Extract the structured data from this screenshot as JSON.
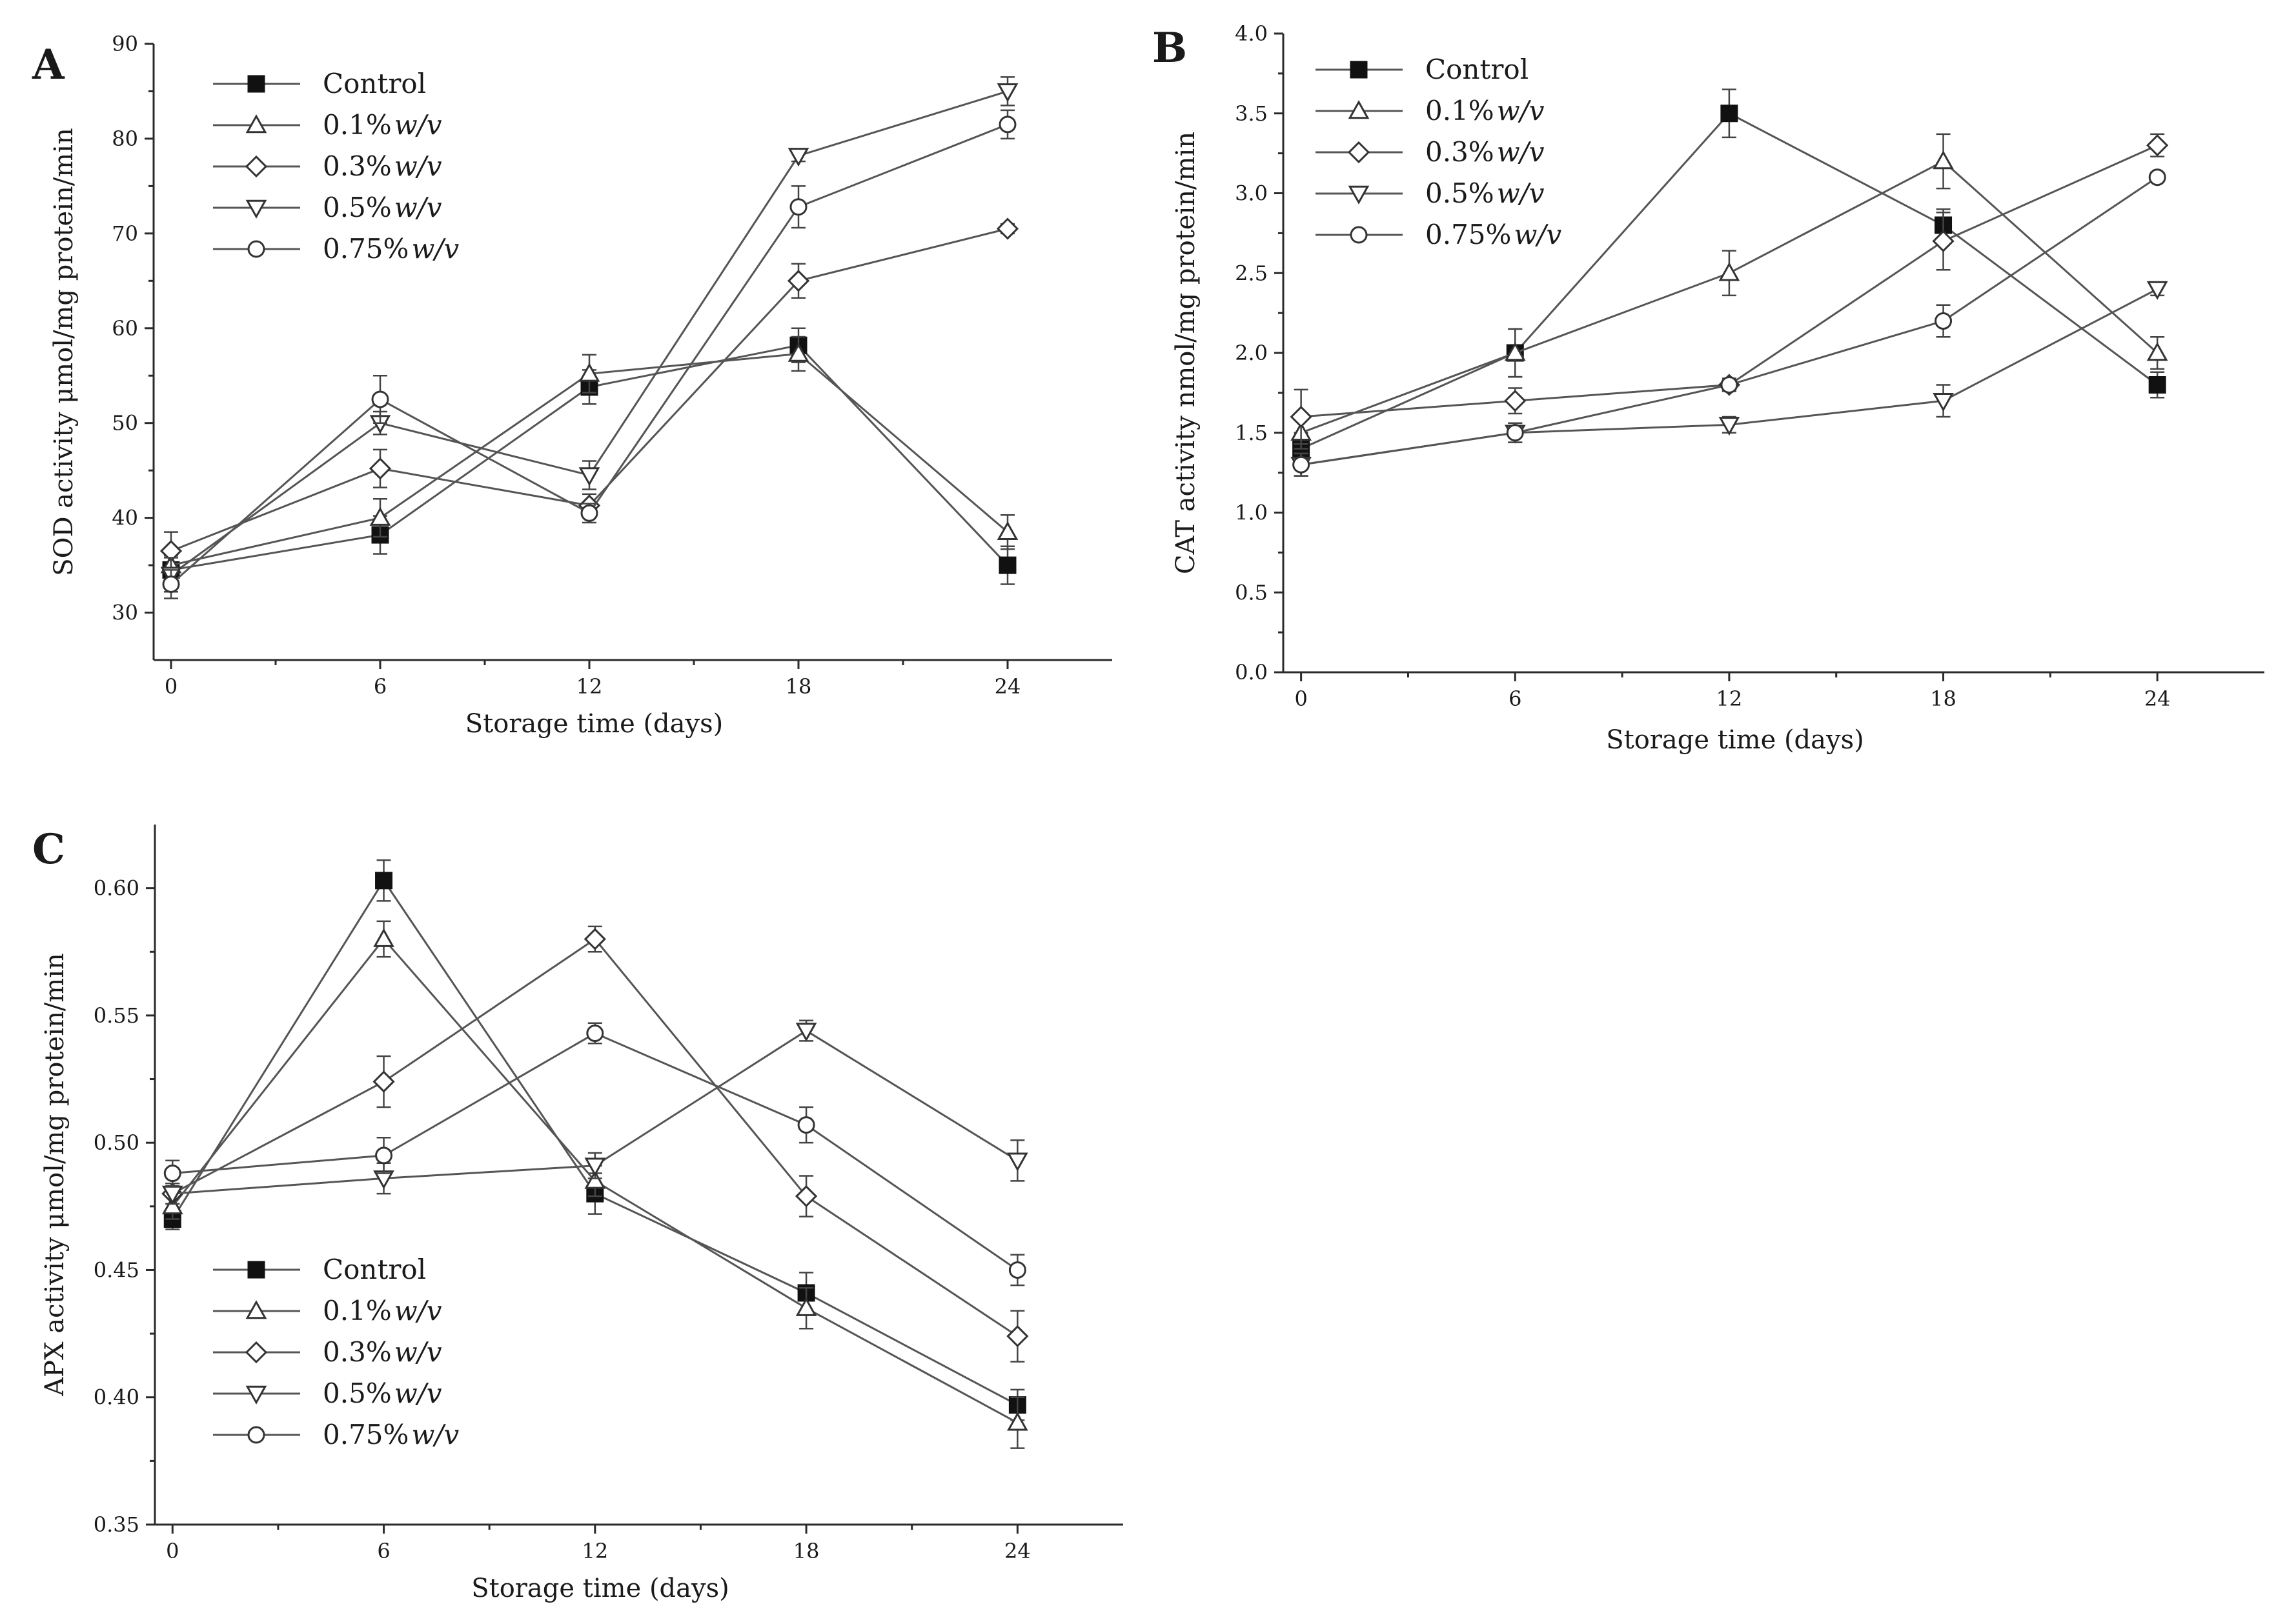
{
  "chart_data": [
    {
      "type": "line",
      "panel": "A",
      "xlabel": "Storage time (days)",
      "ylabel": "SOD activity μmol/mg protein/min",
      "x": [
        0,
        6,
        12,
        18,
        24
      ],
      "xlim": [
        -0.5,
        27
      ],
      "ylim": [
        25,
        90
      ],
      "yticks": [
        30,
        40,
        50,
        60,
        70,
        80,
        90
      ],
      "ytick_labels": [
        "30",
        "40",
        "50",
        "60",
        "70",
        "80",
        "90"
      ],
      "xticks": [
        0,
        6,
        12,
        18,
        24
      ],
      "legend_position": "top-left",
      "series": [
        {
          "name": "Control",
          "marker": "square-filled",
          "values": [
            34.5,
            38.2,
            53.8,
            58.2,
            35.0
          ],
          "errors": [
            1.5,
            2.0,
            1.8,
            1.8,
            2.0
          ]
        },
        {
          "name": "0.1%",
          "name_suffix": "w/v",
          "marker": "triangle-up",
          "values": [
            35.0,
            40.0,
            55.2,
            57.3,
            38.5
          ],
          "errors": [
            1.5,
            2.0,
            2.0,
            1.8,
            1.8
          ]
        },
        {
          "name": "0.3%",
          "name_suffix": "w/v",
          "marker": "diamond",
          "values": [
            36.5,
            45.2,
            41.3,
            65.0,
            70.5
          ],
          "errors": [
            2.0,
            2.0,
            1.2,
            1.8,
            0.5
          ]
        },
        {
          "name": "0.5%",
          "name_suffix": "w/v",
          "marker": "triangle-down",
          "values": [
            34.0,
            50.0,
            44.5,
            78.2,
            85.0
          ],
          "errors": [
            1.8,
            1.2,
            1.5,
            0.6,
            1.5
          ]
        },
        {
          "name": "0.75%",
          "name_suffix": "w/v",
          "marker": "circle",
          "values": [
            33.0,
            52.5,
            40.5,
            72.8,
            81.5
          ],
          "errors": [
            1.5,
            2.5,
            1.0,
            2.2,
            1.5
          ]
        }
      ]
    },
    {
      "type": "line",
      "panel": "B",
      "xlabel": "Storage time (days)",
      "ylabel": "CAT activity nmol/mg protein/min",
      "x": [
        0,
        6,
        12,
        18,
        24
      ],
      "xlim": [
        -0.5,
        27
      ],
      "ylim": [
        0,
        4.0
      ],
      "yticks": [
        0,
        0.5,
        1.0,
        1.5,
        2.0,
        2.5,
        3.0,
        3.5,
        4.0
      ],
      "ytick_labels": [
        "0.0",
        "0.5",
        "1.0",
        "1.5",
        "2.0",
        "2.5",
        "3.0",
        "3.5",
        "4.0"
      ],
      "xticks": [
        0,
        6,
        12,
        18,
        24
      ],
      "legend_position": "top-left",
      "series": [
        {
          "name": "Control",
          "marker": "square-filled",
          "values": [
            1.4,
            2.0,
            3.5,
            2.8,
            1.8
          ],
          "errors": [
            0.1,
            0.15,
            0.15,
            0.1,
            0.08
          ]
        },
        {
          "name": "0.1%",
          "name_suffix": "w/v",
          "marker": "triangle-up",
          "values": [
            1.5,
            2.0,
            2.5,
            3.2,
            2.0
          ],
          "errors": [
            0.1,
            0.15,
            0.14,
            0.17,
            0.1
          ]
        },
        {
          "name": "0.3%",
          "name_suffix": "w/v",
          "marker": "diamond",
          "values": [
            1.6,
            1.7,
            1.8,
            2.7,
            3.3
          ],
          "errors": [
            0.17,
            0.08,
            0.04,
            0.18,
            0.07
          ]
        },
        {
          "name": "0.5%",
          "name_suffix": "w/v",
          "marker": "triangle-down",
          "values": [
            1.3,
            1.5,
            1.55,
            1.7,
            2.4
          ],
          "errors": [
            0.07,
            0.06,
            0.05,
            0.1,
            0.04
          ]
        },
        {
          "name": "0.75%",
          "name_suffix": "w/v",
          "marker": "circle",
          "values": [
            1.3,
            1.5,
            1.8,
            2.2,
            3.1
          ],
          "errors": [
            0.07,
            0.06,
            0.04,
            0.1,
            0.03
          ]
        }
      ]
    },
    {
      "type": "line",
      "panel": "C",
      "xlabel": "Storage time (days)",
      "ylabel": "APX activity μmol/mg protein/min",
      "x": [
        0,
        6,
        12,
        18,
        24
      ],
      "xlim": [
        -0.5,
        27
      ],
      "ylim": [
        0.35,
        0.625
      ],
      "yticks": [
        0.35,
        0.4,
        0.45,
        0.5,
        0.55,
        0.6
      ],
      "ytick_labels": [
        "0.35",
        "0.40",
        "0.45",
        "0.50",
        "0.55",
        "0.60"
      ],
      "xticks": [
        0,
        6,
        12,
        18,
        24
      ],
      "legend_position": "bottom-left",
      "series": [
        {
          "name": "Control",
          "marker": "square-filled",
          "values": [
            0.47,
            0.603,
            0.48,
            0.441,
            0.397
          ],
          "errors": [
            0.004,
            0.008,
            0.008,
            0.008,
            0.006
          ]
        },
        {
          "name": "0.1%",
          "name_suffix": "w/v",
          "marker": "triangle-up",
          "values": [
            0.475,
            0.58,
            0.485,
            0.435,
            0.39
          ],
          "errors": [
            0.005,
            0.007,
            0.006,
            0.008,
            0.01
          ]
        },
        {
          "name": "0.3%",
          "name_suffix": "w/v",
          "marker": "diamond",
          "values": [
            0.48,
            0.524,
            0.58,
            0.479,
            0.424
          ],
          "errors": [
            0.004,
            0.01,
            0.005,
            0.008,
            0.01
          ]
        },
        {
          "name": "0.5%",
          "name_suffix": "w/v",
          "marker": "triangle-down",
          "values": [
            0.48,
            0.486,
            0.491,
            0.544,
            0.493
          ],
          "errors": [
            0.004,
            0.006,
            0.005,
            0.004,
            0.008
          ]
        },
        {
          "name": "0.75%",
          "name_suffix": "w/v",
          "marker": "circle",
          "values": [
            0.488,
            0.495,
            0.543,
            0.507,
            0.45
          ],
          "errors": [
            0.005,
            0.007,
            0.004,
            0.007,
            0.006
          ]
        }
      ]
    }
  ]
}
